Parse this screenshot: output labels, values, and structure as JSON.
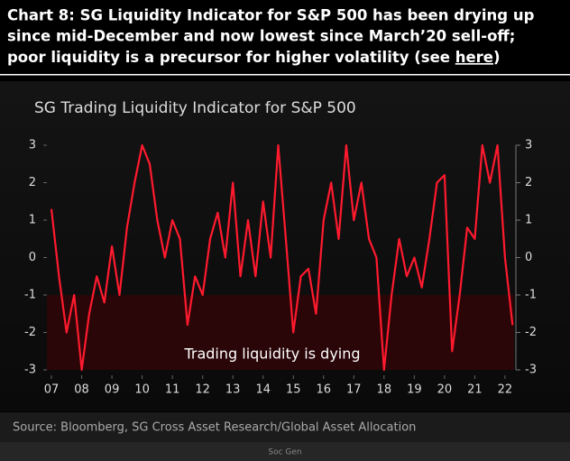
{
  "header": {
    "line1": "Chart 8: SG Liquidity Indicator for S&P 500 has been drying up",
    "line2": "since mid-December and now lowest since March’20 sell-off;",
    "line3": "poor liquidity is a precursor  for higher volatility (see",
    "link": "here",
    "line3_end": ")"
  },
  "chart_data": {
    "type": "line",
    "title": "SG Trading Liquidity Indicator for S&P 500",
    "annotation": "Trading liquidity is dying",
    "color": "#ff1a2e",
    "x": [
      7.0,
      7.25,
      7.5,
      7.75,
      8.0,
      8.25,
      8.5,
      8.75,
      9.0,
      9.25,
      9.5,
      9.75,
      10.0,
      10.25,
      10.5,
      10.75,
      11.0,
      11.25,
      11.5,
      11.75,
      12.0,
      12.25,
      12.5,
      12.75,
      13.0,
      13.25,
      13.5,
      13.75,
      14.0,
      14.25,
      14.5,
      14.75,
      15.0,
      15.25,
      15.5,
      15.75,
      16.0,
      16.25,
      16.5,
      16.75,
      17.0,
      17.25,
      17.5,
      17.75,
      18.0,
      18.25,
      18.5,
      18.75,
      19.0,
      19.25,
      19.5,
      19.75,
      20.0,
      20.25,
      20.5,
      20.75,
      21.0,
      21.25,
      21.5,
      21.75,
      22.0,
      22.25
    ],
    "values": [
      1.3,
      -0.5,
      -2.0,
      -1.0,
      -3.0,
      -1.5,
      -0.5,
      -1.2,
      0.3,
      -1.0,
      0.8,
      2.0,
      3.0,
      2.5,
      1.0,
      0.0,
      1.0,
      0.5,
      -1.8,
      -0.5,
      -1.0,
      0.5,
      1.2,
      0.0,
      2.0,
      -0.5,
      1.0,
      -0.5,
      1.5,
      0.0,
      3.0,
      0.5,
      -2.0,
      -0.5,
      -0.3,
      -1.5,
      1.0,
      2.0,
      0.5,
      3.0,
      1.0,
      2.0,
      0.5,
      0.0,
      -3.0,
      -1.0,
      0.5,
      -0.5,
      0.0,
      -0.8,
      0.5,
      2.0,
      2.2,
      -2.5,
      -1.0,
      0.8,
      0.5,
      3.0,
      2.0,
      3.0,
      0.0,
      -1.8
    ],
    "xlim": [
      6.85,
      22.3
    ],
    "xticks": [
      {
        "value": 7,
        "label": "07"
      },
      {
        "value": 8,
        "label": "08"
      },
      {
        "value": 9,
        "label": "09"
      },
      10,
      11,
      12,
      13,
      14,
      15,
      16,
      17,
      18,
      19,
      20,
      21,
      22
    ],
    "ylim": [
      -3,
      3
    ],
    "yticks": [
      -3,
      -2,
      -1,
      0,
      1,
      2,
      3
    ],
    "y2lim": [
      -3,
      3
    ],
    "y2ticks": [
      -3,
      -2,
      -1,
      0,
      1,
      2,
      3
    ],
    "source": "Source:  Bloomberg, SG Cross Asset Research/Global Asset Allocation"
  },
  "footer": "Soc Gen"
}
